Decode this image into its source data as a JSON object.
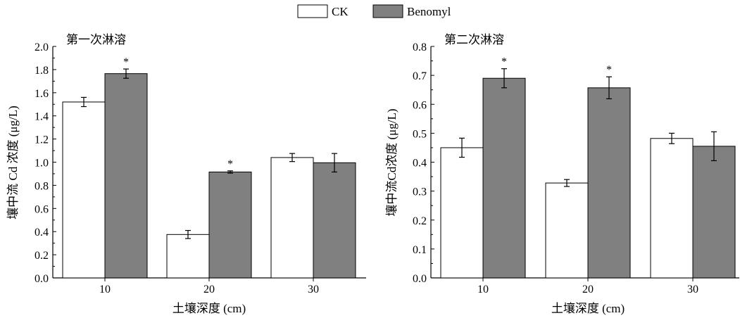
{
  "legend": [
    {
      "name": "CK",
      "color": "#ffffff"
    },
    {
      "name": "Benomyl",
      "color": "#808080"
    }
  ],
  "chart_data": [
    {
      "type": "bar",
      "title": "第一次淋溶",
      "xlabel": "土壤深度 (cm)",
      "ylabel": "壤中流 Cd 浓度 (μg/L)",
      "categories": [
        "10",
        "20",
        "30"
      ],
      "ylim": [
        0,
        2.0
      ],
      "yticks": [
        "0.0",
        "0.2",
        "0.4",
        "0.6",
        "0.8",
        "1.0",
        "1.2",
        "1.4",
        "1.6",
        "1.8",
        "2.0"
      ],
      "series": [
        {
          "name": "CK",
          "values": [
            1.52,
            0.375,
            1.04
          ],
          "errors": [
            0.04,
            0.035,
            0.035
          ]
        },
        {
          "name": "Benomyl",
          "values": [
            1.765,
            0.915,
            0.995
          ],
          "errors": [
            0.04,
            0.01,
            0.08
          ]
        }
      ],
      "annotations": [
        {
          "series": "Benomyl",
          "category": "10",
          "text": "*"
        },
        {
          "series": "Benomyl",
          "category": "20",
          "text": "*"
        }
      ]
    },
    {
      "type": "bar",
      "title": "第二次淋溶",
      "xlabel": "土壤深度 (cm)",
      "ylabel": "壤中流Cd浓度 (μg/L)",
      "categories": [
        "10",
        "20",
        "30"
      ],
      "ylim": [
        0,
        0.8
      ],
      "yticks": [
        "0.0",
        "0.1",
        "0.2",
        "0.3",
        "0.4",
        "0.5",
        "0.6",
        "0.7",
        "0.8"
      ],
      "series": [
        {
          "name": "CK",
          "values": [
            0.45,
            0.328,
            0.482
          ],
          "errors": [
            0.033,
            0.012,
            0.018
          ]
        },
        {
          "name": "Benomyl",
          "values": [
            0.69,
            0.657,
            0.455
          ],
          "errors": [
            0.033,
            0.038,
            0.05
          ]
        }
      ],
      "annotations": [
        {
          "series": "Benomyl",
          "category": "10",
          "text": "*"
        },
        {
          "series": "Benomyl",
          "category": "20",
          "text": "*"
        }
      ]
    }
  ]
}
